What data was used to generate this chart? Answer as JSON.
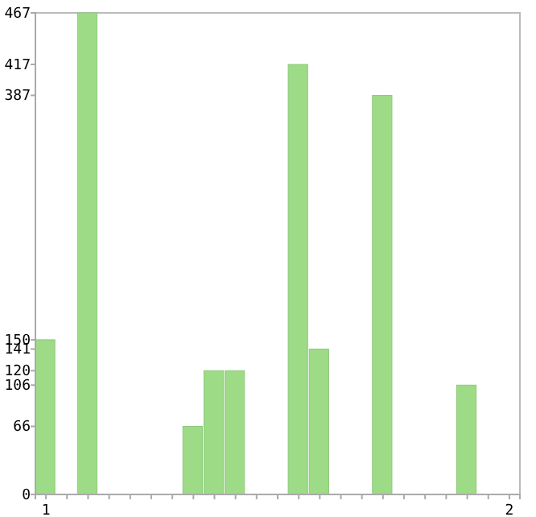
{
  "chart_data": {
    "type": "bar",
    "categories": [
      "1",
      null,
      null,
      null,
      null,
      null,
      null,
      null,
      null,
      null,
      null,
      null,
      null,
      null,
      null,
      null,
      null,
      null,
      null,
      null,
      null,
      null,
      "2"
    ],
    "values": [
      150,
      0,
      467,
      0,
      0,
      0,
      0,
      66,
      120,
      120,
      0,
      0,
      417,
      141,
      0,
      0,
      387,
      0,
      0,
      0,
      106,
      0,
      0
    ],
    "color": "#9ddb86",
    "ylim": [
      0,
      467
    ],
    "yticks": [
      0,
      66,
      106,
      120,
      141,
      150,
      387,
      417,
      467
    ],
    "grid": false
  }
}
